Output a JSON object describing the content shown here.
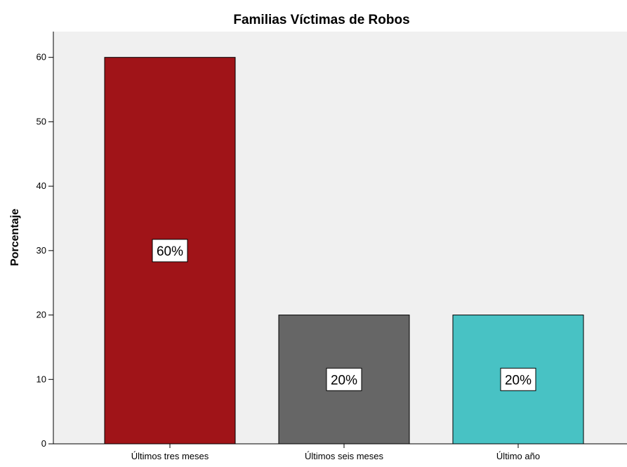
{
  "chart_data": {
    "type": "bar",
    "title": "Familias Víctimas de Robos",
    "xlabel": "",
    "ylabel": "Porcentaje",
    "categories": [
      "Últimos tres meses",
      "Últimos seis meses",
      "Último año"
    ],
    "values": [
      60,
      20,
      20
    ],
    "data_labels": [
      "60%",
      "20%",
      "20%"
    ],
    "colors": [
      "#a01418",
      "#666666",
      "#48c2c4"
    ],
    "plot_background": "#f0f0f0",
    "ylim": [
      0,
      64
    ],
    "yticks": [
      0,
      10,
      20,
      30,
      40,
      50,
      60
    ],
    "grid": false,
    "legend": "none"
  }
}
